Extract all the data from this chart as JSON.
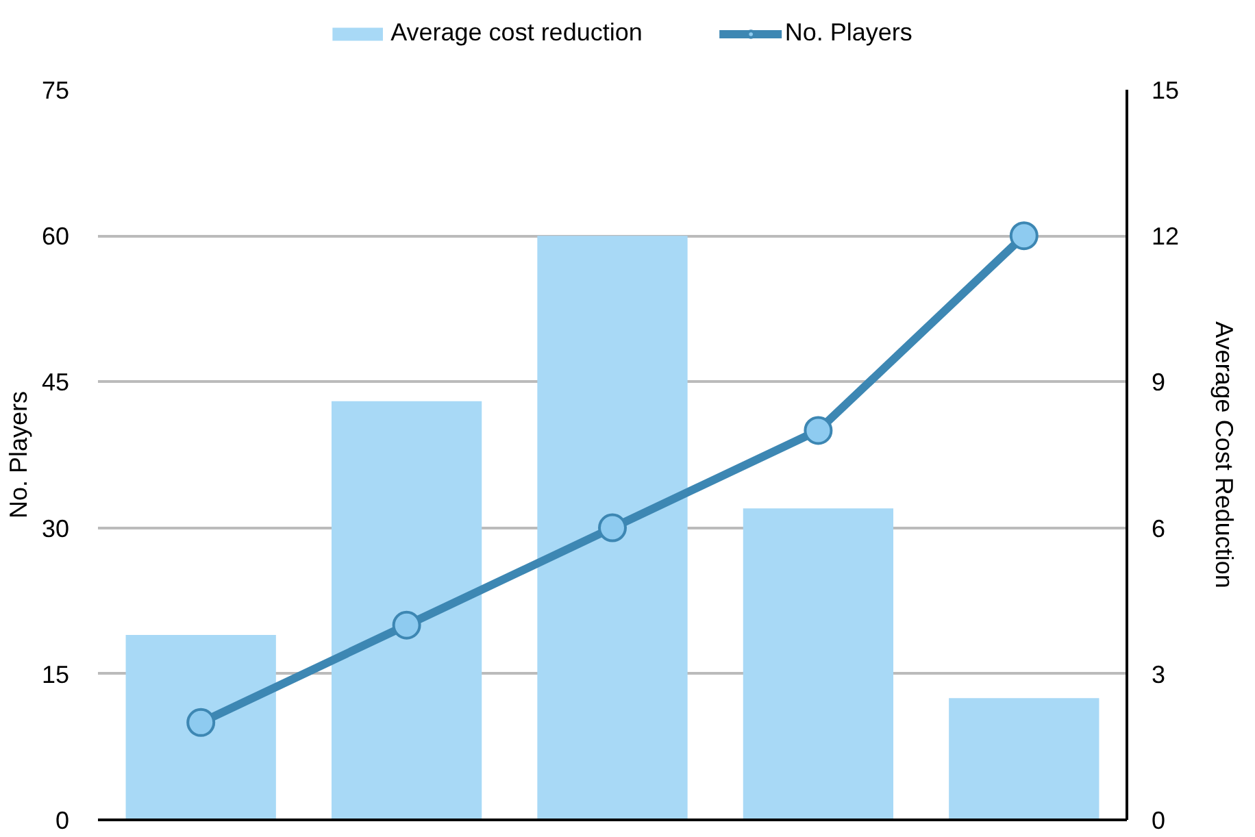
{
  "chart_data": {
    "type": "bar",
    "categories": [
      null,
      null,
      null,
      null,
      null
    ],
    "ylabel": "No. Players",
    "y2label": "Average Cost Reduction",
    "ylim": [
      0,
      75
    ],
    "yticks": [
      0,
      15,
      30,
      45,
      60,
      75
    ],
    "y2lim": [
      0,
      15
    ],
    "y2ticks": [
      0,
      3,
      6,
      9,
      12,
      15
    ],
    "series": [
      {
        "name": "Average cost reduction",
        "axis": "y2",
        "color": "#a8d9f6",
        "values": [
          3.8,
          8.6,
          12.0,
          6.4,
          2.5
        ]
      },
      {
        "name": "No. Players",
        "type": "line",
        "color": "#3d87b3",
        "values": [
          10,
          20,
          30,
          40,
          60
        ]
      }
    ],
    "marker": "circle",
    "line_style": "solid",
    "grid": "y",
    "legend": "top"
  }
}
